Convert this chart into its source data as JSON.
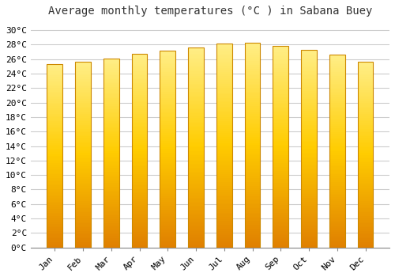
{
  "title": "Average monthly temperatures (°C ) in Sabana Buey",
  "months": [
    "Jan",
    "Feb",
    "Mar",
    "Apr",
    "May",
    "Jun",
    "Jul",
    "Aug",
    "Sep",
    "Oct",
    "Nov",
    "Dec"
  ],
  "temperatures": [
    25.3,
    25.6,
    26.1,
    26.7,
    27.2,
    27.6,
    28.2,
    28.3,
    27.8,
    27.3,
    26.6,
    25.6
  ],
  "bar_color_light": "#FFD966",
  "bar_color_mid": "#FFA500",
  "bar_color_dark": "#E08000",
  "bar_edge_color": "#CC8800",
  "yticks": [
    0,
    2,
    4,
    6,
    8,
    10,
    12,
    14,
    16,
    18,
    20,
    22,
    24,
    26,
    28,
    30
  ],
  "ylim": [
    0,
    31
  ],
  "background_color": "#FFFFFF",
  "grid_color": "#CCCCCC",
  "title_fontsize": 10,
  "tick_fontsize": 8,
  "font_family": "monospace",
  "bar_width": 0.55
}
